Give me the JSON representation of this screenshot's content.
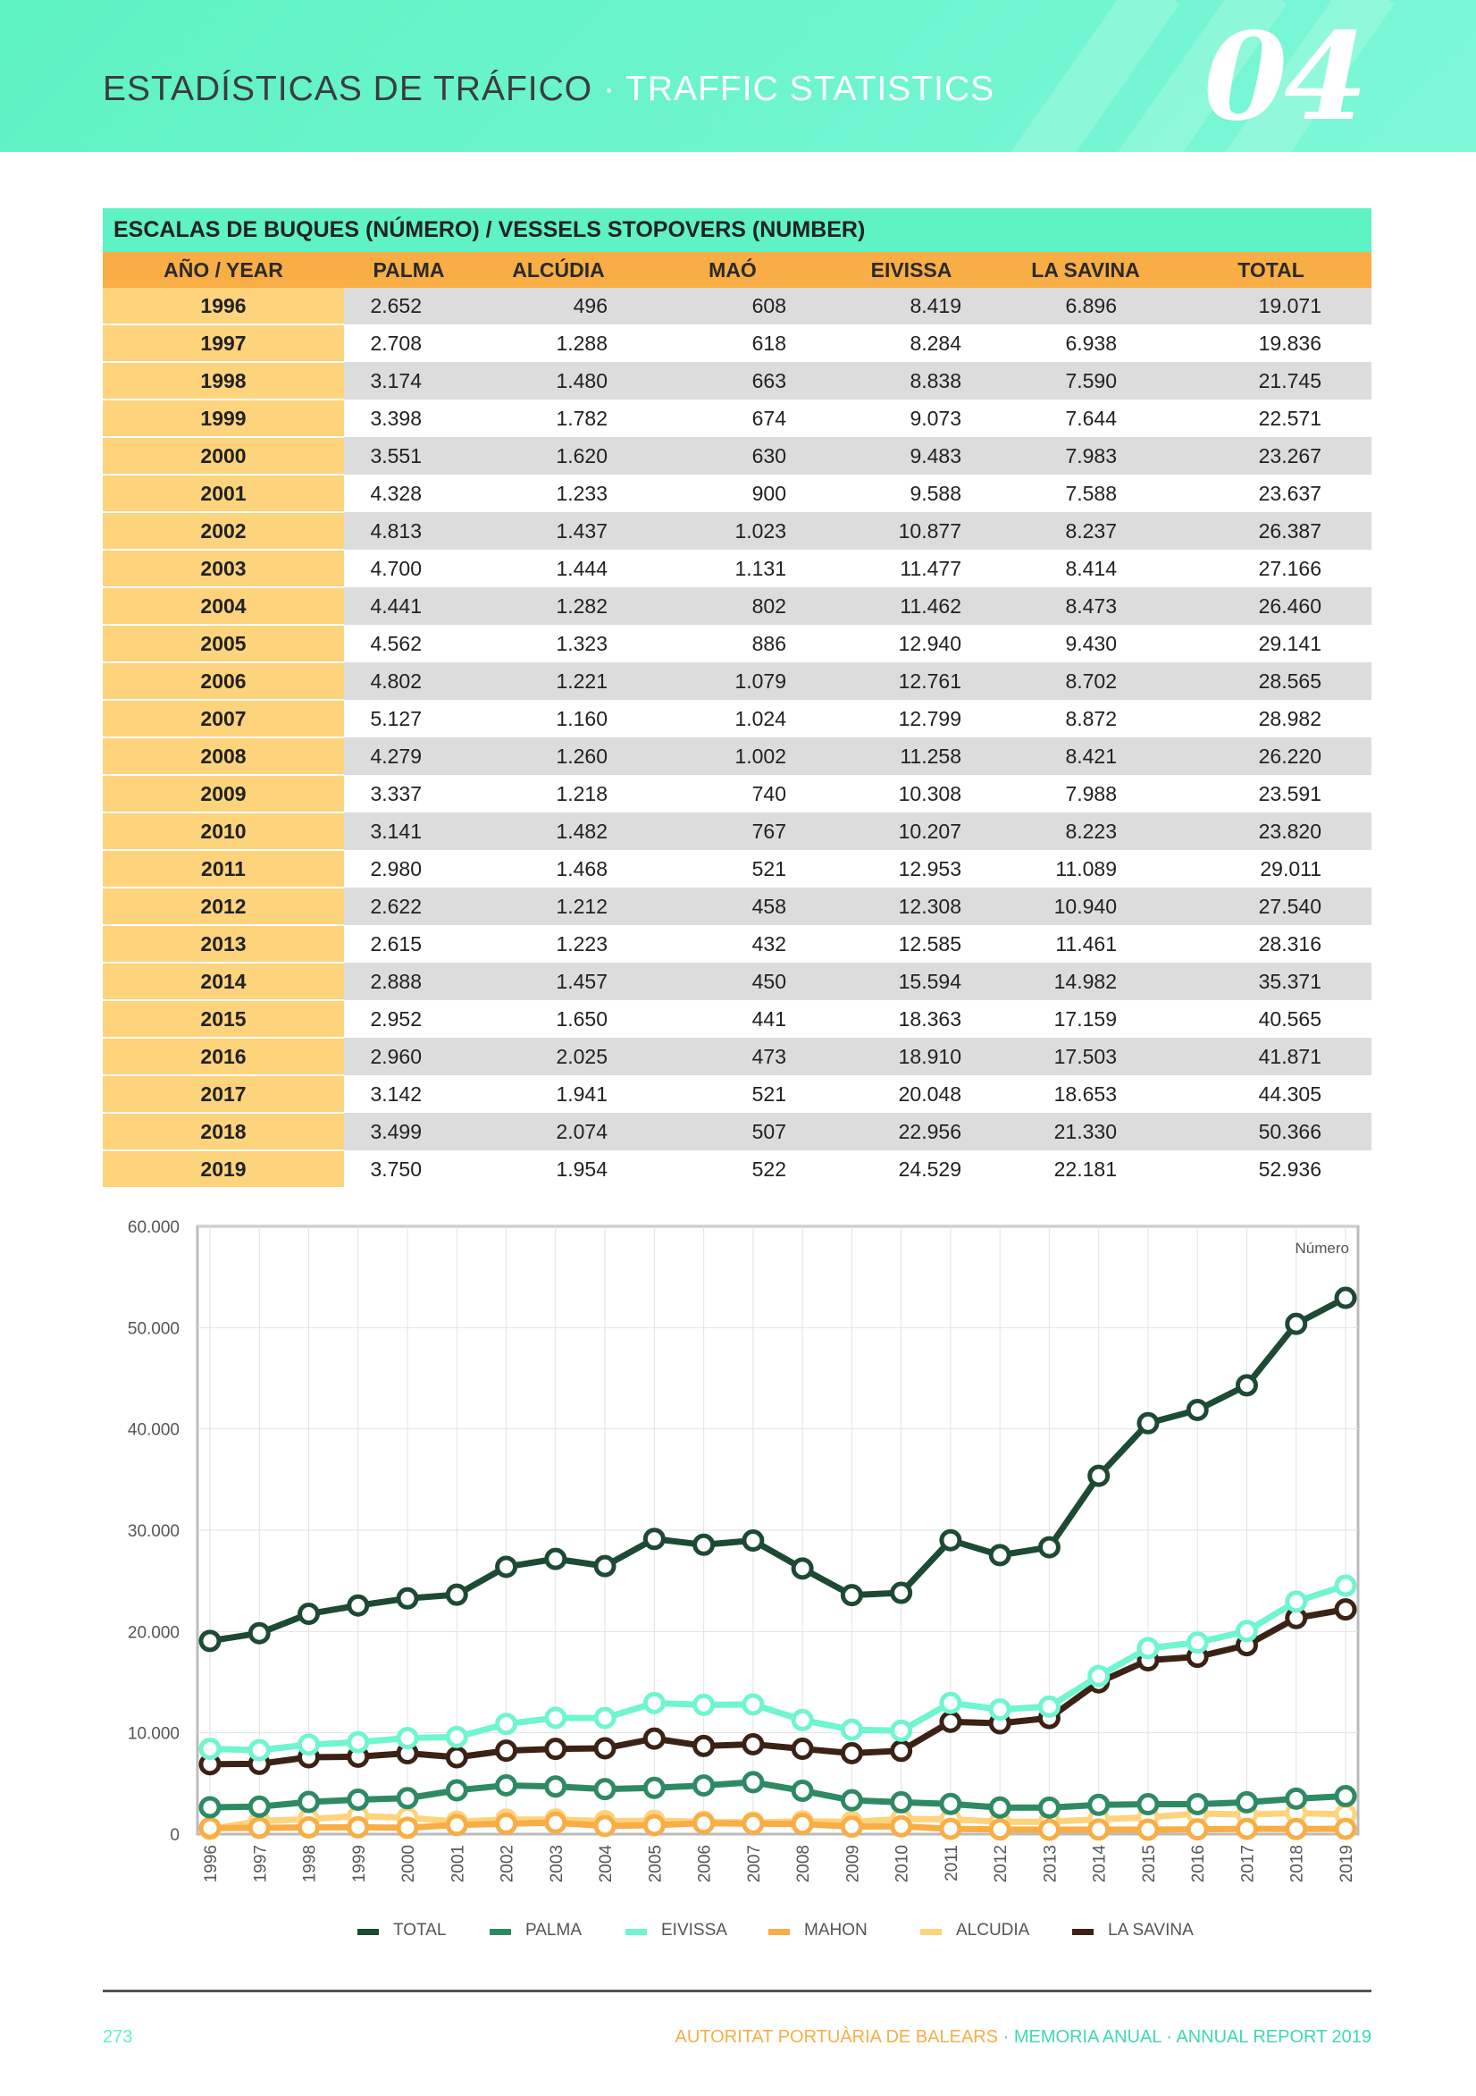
{
  "header": {
    "title_es": "ESTADÍSTICAS DE TRÁFICO",
    "separator": " · ",
    "title_en": "TRAFFIC STATISTICS",
    "chapter": "04"
  },
  "table": {
    "caption": "ESCALAS DE BUQUES (NÚMERO) / VESSELS STOPOVERS (NUMBER)",
    "columns": [
      "AÑO / YEAR",
      "PALMA",
      "ALCÚDIA",
      "MAÓ",
      "EIVISSA",
      "LA SAVINA",
      "TOTAL"
    ],
    "rows": [
      [
        "1996",
        "2.652",
        "496",
        "608",
        "8.419",
        "6.896",
        "19.071"
      ],
      [
        "1997",
        "2.708",
        "1.288",
        "618",
        "8.284",
        "6.938",
        "19.836"
      ],
      [
        "1998",
        "3.174",
        "1.480",
        "663",
        "8.838",
        "7.590",
        "21.745"
      ],
      [
        "1999",
        "3.398",
        "1.782",
        "674",
        "9.073",
        "7.644",
        "22.571"
      ],
      [
        "2000",
        "3.551",
        "1.620",
        "630",
        "9.483",
        "7.983",
        "23.267"
      ],
      [
        "2001",
        "4.328",
        "1.233",
        "900",
        "9.588",
        "7.588",
        "23.637"
      ],
      [
        "2002",
        "4.813",
        "1.437",
        "1.023",
        "10.877",
        "8.237",
        "26.387"
      ],
      [
        "2003",
        "4.700",
        "1.444",
        "1.131",
        "11.477",
        "8.414",
        "27.166"
      ],
      [
        "2004",
        "4.441",
        "1.282",
        "802",
        "11.462",
        "8.473",
        "26.460"
      ],
      [
        "2005",
        "4.562",
        "1.323",
        "886",
        "12.940",
        "9.430",
        "29.141"
      ],
      [
        "2006",
        "4.802",
        "1.221",
        "1.079",
        "12.761",
        "8.702",
        "28.565"
      ],
      [
        "2007",
        "5.127",
        "1.160",
        "1.024",
        "12.799",
        "8.872",
        "28.982"
      ],
      [
        "2008",
        "4.279",
        "1.260",
        "1.002",
        "11.258",
        "8.421",
        "26.220"
      ],
      [
        "2009",
        "3.337",
        "1.218",
        "740",
        "10.308",
        "7.988",
        "23.591"
      ],
      [
        "2010",
        "3.141",
        "1.482",
        "767",
        "10.207",
        "8.223",
        "23.820"
      ],
      [
        "2011",
        "2.980",
        "1.468",
        "521",
        "12.953",
        "11.089",
        "29.011"
      ],
      [
        "2012",
        "2.622",
        "1.212",
        "458",
        "12.308",
        "10.940",
        "27.540"
      ],
      [
        "2013",
        "2.615",
        "1.223",
        "432",
        "12.585",
        "11.461",
        "28.316"
      ],
      [
        "2014",
        "2.888",
        "1.457",
        "450",
        "15.594",
        "14.982",
        "35.371"
      ],
      [
        "2015",
        "2.952",
        "1.650",
        "441",
        "18.363",
        "17.159",
        "40.565"
      ],
      [
        "2016",
        "2.960",
        "2.025",
        "473",
        "18.910",
        "17.503",
        "41.871"
      ],
      [
        "2017",
        "3.142",
        "1.941",
        "521",
        "20.048",
        "18.653",
        "44.305"
      ],
      [
        "2018",
        "3.499",
        "2.074",
        "507",
        "22.956",
        "21.330",
        "50.366"
      ],
      [
        "2019",
        "3.750",
        "1.954",
        "522",
        "24.529",
        "22.181",
        "52.936"
      ]
    ]
  },
  "chart_data": {
    "type": "line",
    "annotation": "Número",
    "ylim": [
      0,
      60000
    ],
    "y_ticks": [
      0,
      10000,
      20000,
      30000,
      40000,
      50000,
      60000
    ],
    "y_tick_labels": [
      "0",
      "10.000",
      "20.000",
      "30.000",
      "40.000",
      "50.000",
      "60.000"
    ],
    "x": [
      "1996",
      "1997",
      "1998",
      "1999",
      "2000",
      "2001",
      "2002",
      "2003",
      "2004",
      "2005",
      "2006",
      "2007",
      "2008",
      "2009",
      "2010",
      "2011",
      "2012",
      "2013",
      "2014",
      "2015",
      "2016",
      "2017",
      "2018",
      "2019"
    ],
    "grid": true,
    "legend_position": "bottom",
    "series": [
      {
        "name": "TOTAL",
        "color": "#1d4a33",
        "values": [
          19071,
          19836,
          21745,
          22571,
          23267,
          23637,
          26387,
          27166,
          26460,
          29141,
          28565,
          28982,
          26220,
          23591,
          23820,
          29011,
          27540,
          28316,
          35371,
          40565,
          41871,
          44305,
          50366,
          52936
        ]
      },
      {
        "name": "PALMA",
        "color": "#2e8a62",
        "values": [
          2652,
          2708,
          3174,
          3398,
          3551,
          4328,
          4813,
          4700,
          4441,
          4562,
          4802,
          5127,
          4279,
          3337,
          3141,
          2980,
          2622,
          2615,
          2888,
          2952,
          2960,
          3142,
          3499,
          3750
        ]
      },
      {
        "name": "EIVISSA",
        "color": "#6ff5cf",
        "values": [
          8419,
          8284,
          8838,
          9073,
          9483,
          9588,
          10877,
          11477,
          11462,
          12940,
          12761,
          12799,
          11258,
          10308,
          10207,
          12953,
          12308,
          12585,
          15594,
          18363,
          18910,
          20048,
          22956,
          24529
        ]
      },
      {
        "name": "MAHON",
        "color": "#f8ad45",
        "values": [
          608,
          618,
          663,
          674,
          630,
          900,
          1023,
          1131,
          802,
          886,
          1079,
          1024,
          1002,
          740,
          767,
          521,
          458,
          432,
          450,
          441,
          473,
          521,
          507,
          522
        ]
      },
      {
        "name": "ALCUDIA",
        "color": "#fdd37c",
        "values": [
          496,
          1288,
          1480,
          1782,
          1620,
          1233,
          1437,
          1444,
          1282,
          1323,
          1221,
          1160,
          1260,
          1218,
          1482,
          1468,
          1212,
          1223,
          1457,
          1650,
          2025,
          1941,
          2074,
          1954
        ]
      },
      {
        "name": "LA SAVINA",
        "color": "#3b2215",
        "values": [
          6896,
          6938,
          7590,
          7644,
          7983,
          7588,
          8237,
          8414,
          8473,
          9430,
          8702,
          8872,
          8421,
          7988,
          8223,
          11089,
          10940,
          11461,
          14982,
          17159,
          17503,
          18653,
          21330,
          22181
        ]
      }
    ]
  },
  "footer": {
    "page": "273",
    "org": "AUTORITAT PORTUÀRIA DE BALEARS",
    "report": " · MEMORIA ANUAL · ANNUAL REPORT 2019"
  }
}
